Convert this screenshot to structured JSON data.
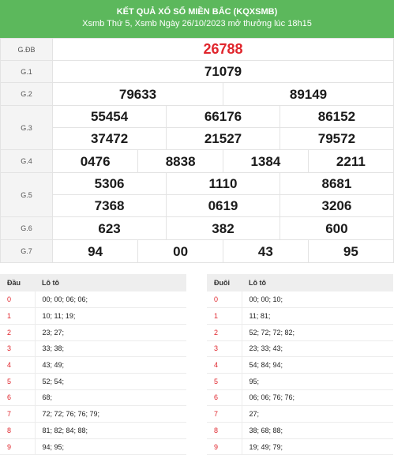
{
  "header": {
    "title": "KẾT QUẢ XỔ SỐ MIỀN BẮC (KQXSMB)",
    "subtitle": "Xsmb Thứ 5, Xsmb Ngày 26/10/2023 mở thưởng lúc 18h15"
  },
  "prizes": {
    "gdb": {
      "label": "G.ĐB",
      "numbers": [
        "26788"
      ]
    },
    "g1": {
      "label": "G.1",
      "numbers": [
        "71079"
      ]
    },
    "g2": {
      "label": "G.2",
      "numbers": [
        "79633",
        "89149"
      ]
    },
    "g3": {
      "label": "G.3",
      "numbers": [
        "55454",
        "66176",
        "86152",
        "37472",
        "21527",
        "79572"
      ]
    },
    "g4": {
      "label": "G.4",
      "numbers": [
        "0476",
        "8838",
        "1384",
        "2211"
      ]
    },
    "g5": {
      "label": "G.5",
      "numbers": [
        "5306",
        "1110",
        "8681",
        "7368",
        "0619",
        "3206"
      ]
    },
    "g6": {
      "label": "G.6",
      "numbers": [
        "623",
        "382",
        "600"
      ]
    },
    "g7": {
      "label": "G.7",
      "numbers": [
        "94",
        "00",
        "43",
        "95"
      ]
    }
  },
  "loto_head": {
    "col_key": "Đầu",
    "col_value": "Lô tô",
    "rows": [
      {
        "key": "0",
        "value": "00; 00; 06; 06;"
      },
      {
        "key": "1",
        "value": "10; 11; 19;"
      },
      {
        "key": "2",
        "value": "23; 27;"
      },
      {
        "key": "3",
        "value": "33; 38;"
      },
      {
        "key": "4",
        "value": "43; 49;"
      },
      {
        "key": "5",
        "value": "52; 54;"
      },
      {
        "key": "6",
        "value": "68;"
      },
      {
        "key": "7",
        "value": "72; 72; 76; 76; 79;"
      },
      {
        "key": "8",
        "value": "81; 82; 84; 88;"
      },
      {
        "key": "9",
        "value": "94; 95;"
      }
    ]
  },
  "loto_tail": {
    "col_key": "Đuôi",
    "col_value": "Lô tô",
    "rows": [
      {
        "key": "0",
        "value": "00; 00; 10;"
      },
      {
        "key": "1",
        "value": "11; 81;"
      },
      {
        "key": "2",
        "value": "52; 72; 72; 82;"
      },
      {
        "key": "3",
        "value": "23; 33; 43;"
      },
      {
        "key": "4",
        "value": "54; 84; 94;"
      },
      {
        "key": "5",
        "value": "95;"
      },
      {
        "key": "6",
        "value": "06; 06; 76; 76;"
      },
      {
        "key": "7",
        "value": "27;"
      },
      {
        "key": "8",
        "value": "38; 68; 88;"
      },
      {
        "key": "9",
        "value": "19; 49; 79;"
      }
    ]
  },
  "colors": {
    "header_bg": "#5cb85c",
    "special": "#e0252c",
    "key": "#e0252c"
  }
}
